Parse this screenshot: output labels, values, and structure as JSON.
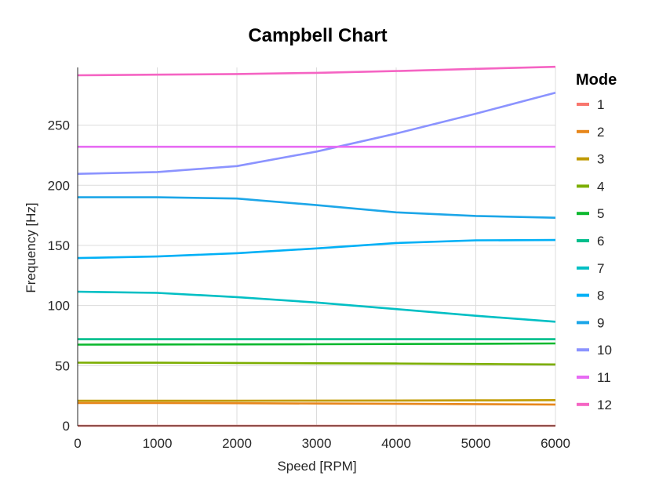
{
  "chart_data": {
    "type": "line",
    "title": "Campbell Chart",
    "xlabel": "Speed [RPM]",
    "ylabel": "Frequency [Hz]",
    "xlim": [
      0,
      6000
    ],
    "ylim": [
      0,
      298
    ],
    "xticks": [
      0,
      1000,
      2000,
      3000,
      4000,
      5000,
      6000
    ],
    "yticks": [
      0,
      50,
      100,
      150,
      200,
      250
    ],
    "grid": true,
    "legend_title": "Mode",
    "legend_placement": "right",
    "x": [
      0,
      1000,
      2000,
      3000,
      4000,
      5000,
      6000
    ],
    "series": [
      {
        "name": "1",
        "color": "#f8766d",
        "values": [
          0,
          0,
          0,
          0,
          0,
          0,
          0
        ]
      },
      {
        "name": "2",
        "color": "#e7861b",
        "values": [
          19,
          19,
          18.8,
          18.5,
          18.3,
          18,
          17.7
        ]
      },
      {
        "name": "3",
        "color": "#c09b00",
        "values": [
          20.8,
          20.8,
          20.8,
          20.9,
          21,
          21.1,
          21.3
        ]
      },
      {
        "name": "4",
        "color": "#7cae00",
        "values": [
          52.5,
          52.4,
          52.2,
          52,
          51.8,
          51.4,
          51
        ]
      },
      {
        "name": "5",
        "color": "#0cb82e",
        "values": [
          67.5,
          67.6,
          67.7,
          67.8,
          68,
          68.2,
          68.5
        ]
      },
      {
        "name": "6",
        "color": "#00be8c",
        "values": [
          72,
          72,
          72,
          72,
          72,
          72,
          72
        ]
      },
      {
        "name": "7",
        "color": "#00bfc4",
        "values": [
          111.5,
          110.5,
          107,
          102.5,
          97,
          91.5,
          86.5
        ]
      },
      {
        "name": "8",
        "color": "#00b0f6",
        "values": [
          139.5,
          140.8,
          143.5,
          147.5,
          152,
          154.2,
          154.5
        ]
      },
      {
        "name": "9",
        "color": "#1ca6e8",
        "values": [
          190,
          190,
          189,
          183.5,
          177.5,
          174.5,
          173
        ]
      },
      {
        "name": "10",
        "color": "#8b93ff",
        "values": [
          209.5,
          211,
          216,
          228,
          243,
          259.5,
          277
        ]
      },
      {
        "name": "11",
        "color": "#e76bf3",
        "values": [
          232,
          232,
          232,
          232,
          232,
          232,
          232
        ]
      },
      {
        "name": "12",
        "color": "#f564c3",
        "values": [
          291.5,
          292,
          292.5,
          293.5,
          295,
          296.8,
          298.5
        ]
      }
    ]
  }
}
